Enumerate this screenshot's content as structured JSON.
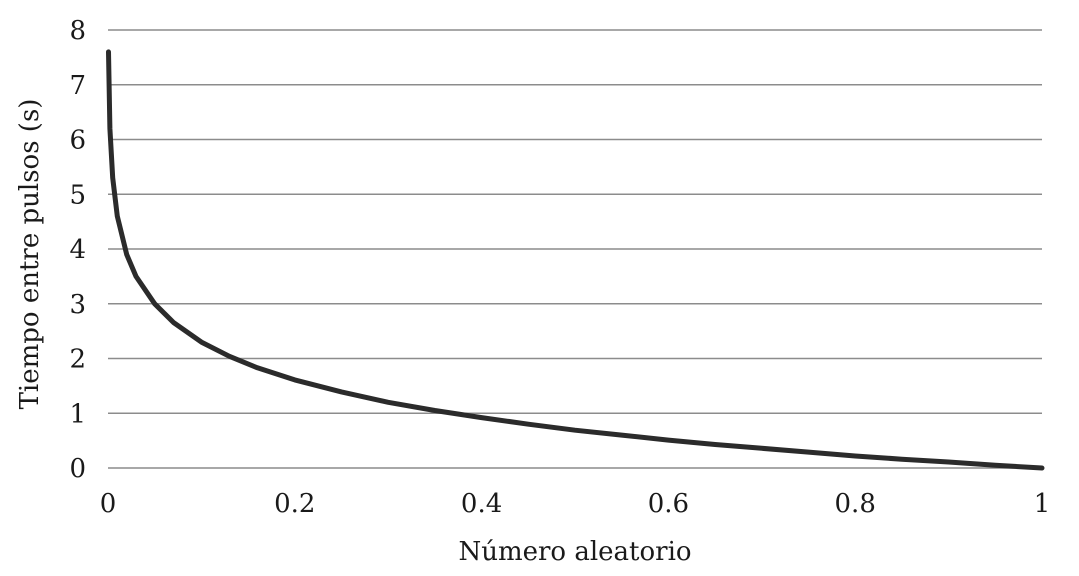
{
  "chart_data": {
    "type": "line",
    "title": "",
    "xlabel": "Número aleatorio",
    "ylabel": "Tiempo entre pulsos (s)",
    "xlim": [
      0,
      1
    ],
    "ylim": [
      0,
      8
    ],
    "grid": true,
    "x_ticks": [
      "0",
      "0.2",
      "0.4",
      "0.6",
      "0.8",
      "1"
    ],
    "y_ticks": [
      "0",
      "1",
      "2",
      "3",
      "4",
      "5",
      "6",
      "7",
      "8"
    ],
    "series": [
      {
        "color": "#2b2b2b",
        "x": [
          0.0005,
          0.002,
          0.005,
          0.01,
          0.02,
          0.03,
          0.05,
          0.07,
          0.1,
          0.13,
          0.16,
          0.2,
          0.25,
          0.3,
          0.35,
          0.4,
          0.45,
          0.5,
          0.55,
          0.6,
          0.65,
          0.7,
          0.75,
          0.8,
          0.85,
          0.9,
          0.95,
          1.0
        ],
        "y": [
          7.6,
          6.2,
          5.3,
          4.6,
          3.9,
          3.5,
          3.0,
          2.66,
          2.3,
          2.04,
          1.83,
          1.61,
          1.39,
          1.2,
          1.05,
          0.92,
          0.8,
          0.69,
          0.6,
          0.51,
          0.43,
          0.36,
          0.29,
          0.22,
          0.16,
          0.11,
          0.05,
          0.0
        ]
      }
    ]
  }
}
